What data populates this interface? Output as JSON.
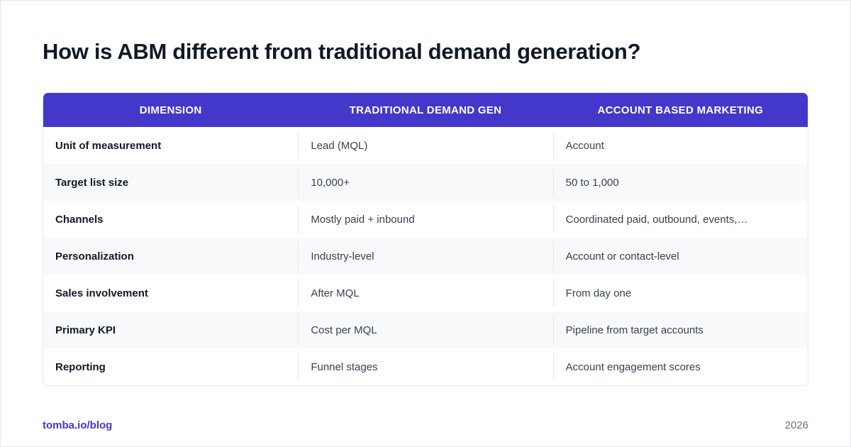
{
  "title": "How is ABM different from traditional demand generation?",
  "table": {
    "headers": [
      "DIMENSION",
      "TRADITIONAL DEMAND GEN",
      "ACCOUNT BASED MARKETING"
    ],
    "rows": [
      [
        "Unit of measurement",
        "Lead (MQL)",
        "Account"
      ],
      [
        "Target list size",
        "10,000+",
        "50 to 1,000"
      ],
      [
        "Channels",
        "Mostly paid + inbound",
        "Coordinated paid, outbound, events,…"
      ],
      [
        "Personalization",
        "Industry-level",
        "Account or contact-level"
      ],
      [
        "Sales involvement",
        "After MQL",
        "From day one"
      ],
      [
        "Primary KPI",
        "Cost per MQL",
        "Pipeline from target accounts"
      ],
      [
        "Reporting",
        "Funnel stages",
        "Account engagement scores"
      ]
    ]
  },
  "footer": {
    "source": "tomba.io/blog",
    "year": "2026"
  },
  "colors": {
    "header_bg": "#4338ca",
    "accent": "#4338ca",
    "alt_row": "#f8f9fb"
  }
}
